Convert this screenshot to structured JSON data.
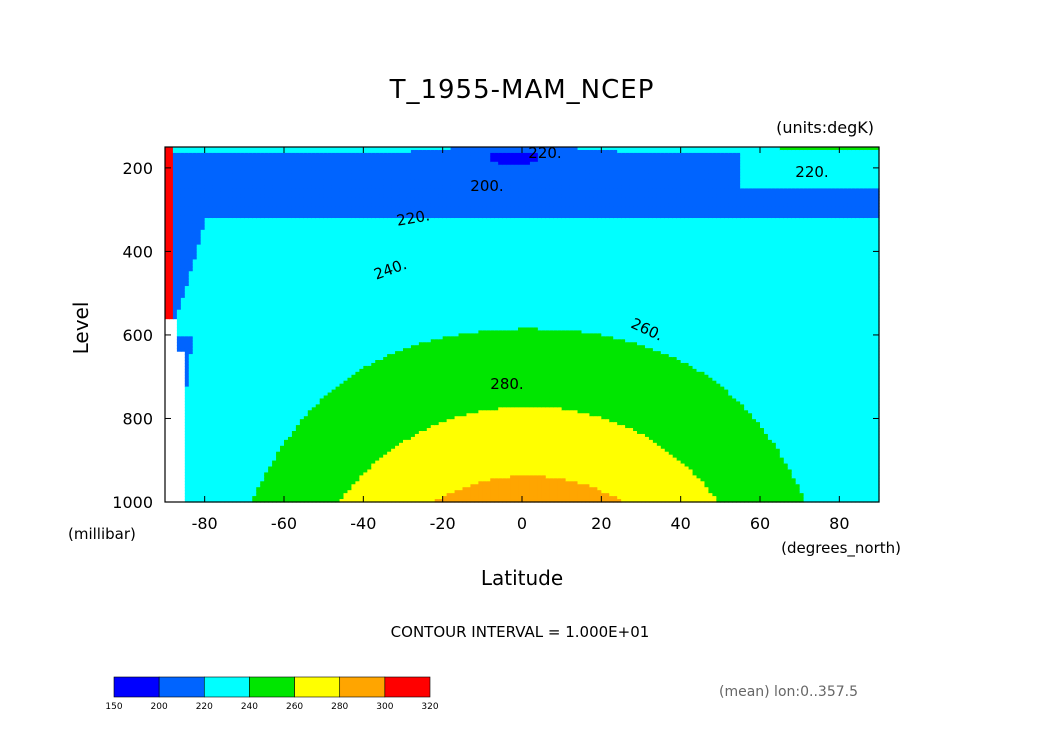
{
  "chart_data": {
    "type": "contour",
    "title": "T_1955-MAM_NCEP",
    "units_label": "(units:degK)",
    "xlabel": "Latitude",
    "x_units_label": "(degrees_north)",
    "ylabel": "Level",
    "y_units_label": "(millibar)",
    "xlim": [
      -90,
      90
    ],
    "ylim": [
      1000,
      150
    ],
    "x_ticks": [
      -80,
      -60,
      -40,
      -20,
      0,
      20,
      40,
      60,
      80
    ],
    "x_tick_labels": [
      "-80",
      "-60",
      "-40",
      "-20",
      "0",
      "20",
      "40",
      "60",
      "80"
    ],
    "y_ticks": [
      200,
      400,
      600,
      800,
      1000
    ],
    "y_tick_labels": [
      "200",
      "400",
      "600",
      "800",
      "1000"
    ],
    "contour_interval_text": "CONTOUR INTERVAL = 1.000E+01",
    "mean_note": "(mean) lon:0..357.5",
    "contour_labels": [
      {
        "text": "220.",
        "lat": 2,
        "level": 168
      },
      {
        "text": "220.",
        "lat": 82,
        "level": 220
      },
      {
        "text": "200.",
        "lat": -10,
        "level": 260
      },
      {
        "text": "220.",
        "lat": -30,
        "level": 210
      },
      {
        "text": "240.",
        "lat": -36,
        "level": 380
      },
      {
        "text": "260.",
        "lat": 35,
        "level": 510
      },
      {
        "text": "280.",
        "lat": -5,
        "level": 680
      }
    ],
    "colorbar": {
      "levels": [
        150,
        200,
        220,
        240,
        260,
        280,
        300,
        320
      ],
      "labels": [
        "150",
        "200",
        "220",
        "240",
        "260",
        "280",
        "300",
        "320"
      ],
      "colors": [
        "#0000ff",
        "#0064ff",
        "#00ffff",
        "#00e600",
        "#ffff00",
        "#ffa500",
        "#ff0000"
      ]
    },
    "bands": [
      {
        "min": 150,
        "max": 200,
        "color": "#0000ff",
        "lat": [
          -12,
          0,
          10,
          24,
          24,
          10,
          0,
          -12,
          -25,
          -25,
          -12
        ],
        "level": [
          180,
          175,
          175,
          180,
          183,
          192,
          192,
          190,
          184,
          182,
          180
        ]
      },
      {
        "min": 200,
        "max": 220,
        "color": "#0064ff",
        "lat": [
          -90,
          -70,
          -50,
          -30,
          -10,
          10,
          30,
          50,
          52,
          58,
          64,
          60,
          64,
          64,
          80,
          90,
          90,
          -90
        ],
        "level": [
          150,
          150,
          152,
          151,
          150,
          150,
          150,
          150,
          152,
          152,
          152,
          180,
          205,
          254,
          226,
          222,
          150,
          150
        ]
      }
    ]
  }
}
